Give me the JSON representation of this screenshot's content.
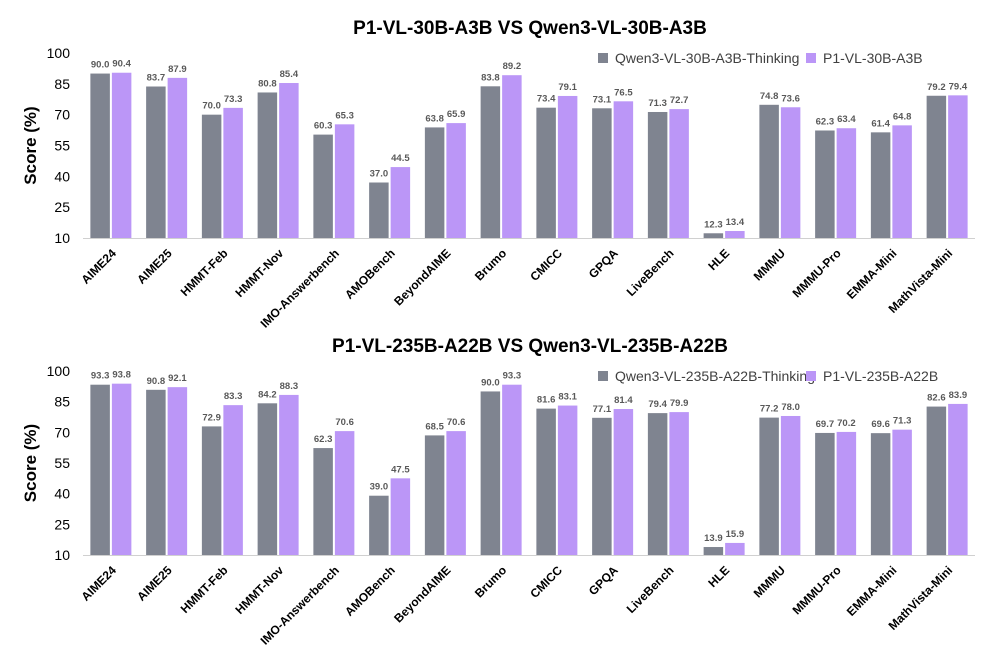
{
  "chart_data": [
    {
      "type": "bar",
      "title": "P1-VL-30B-A3B VS Qwen3-VL-30B-A3B",
      "xlabel": "",
      "ylabel": "Score (%)",
      "ylim": [
        10,
        100
      ],
      "yticks": [
        10,
        25,
        40,
        55,
        70,
        85,
        100
      ],
      "grid": false,
      "legend": "top-right",
      "categories": [
        "AIME24",
        "AIME25",
        "HMMT-Feb",
        "HMMT-Nov",
        "IMO-Answerbench",
        "AMOBench",
        "BeyondAIME",
        "Brumo",
        "CMICC",
        "GPQA",
        "LiveBench",
        "HLE",
        "MMMU",
        "MMMU-Pro",
        "EMMA-Mini",
        "MathVista-Mini"
      ],
      "series": [
        {
          "name": "Qwen3-VL-30B-A3B-Thinking",
          "color": "#7f8490",
          "values": [
            90.0,
            83.7,
            70.0,
            80.8,
            60.3,
            37.0,
            63.8,
            83.8,
            73.4,
            73.1,
            71.3,
            12.3,
            74.8,
            62.3,
            61.4,
            79.2
          ]
        },
        {
          "name": "P1-VL-30B-A3B",
          "color": "#bb96f7",
          "values": [
            90.4,
            87.9,
            73.3,
            85.4,
            65.3,
            44.5,
            65.9,
            89.2,
            79.1,
            76.5,
            72.7,
            13.4,
            73.6,
            63.4,
            64.8,
            79.4
          ]
        }
      ]
    },
    {
      "type": "bar",
      "title": "P1-VL-235B-A22B VS Qwen3-VL-235B-A22B",
      "xlabel": "",
      "ylabel": "Score (%)",
      "ylim": [
        10,
        100
      ],
      "yticks": [
        10,
        25,
        40,
        55,
        70,
        85,
        100
      ],
      "grid": false,
      "legend": "top-right",
      "categories": [
        "AIME24",
        "AIME25",
        "HMMT-Feb",
        "HMMT-Nov",
        "IMO-Answerbench",
        "AMOBench",
        "BeyondAIME",
        "Brumo",
        "CMICC",
        "GPQA",
        "LiveBench",
        "HLE",
        "MMMU",
        "MMMU-Pro",
        "EMMA-Mini",
        "MathVista-Mini"
      ],
      "series": [
        {
          "name": "Qwen3-VL-235B-A22B-Thinking",
          "color": "#7f8490",
          "values": [
            93.3,
            90.8,
            72.9,
            84.2,
            62.3,
            39.0,
            68.5,
            90.0,
            81.6,
            77.1,
            79.4,
            13.9,
            77.2,
            69.7,
            69.6,
            82.6
          ]
        },
        {
          "name": "P1-VL-235B-A22B",
          "color": "#bb96f7",
          "values": [
            93.8,
            92.1,
            83.3,
            88.3,
            70.6,
            47.5,
            70.6,
            93.3,
            83.1,
            81.4,
            79.9,
            15.9,
            78.0,
            70.2,
            71.3,
            83.9
          ]
        }
      ]
    }
  ]
}
